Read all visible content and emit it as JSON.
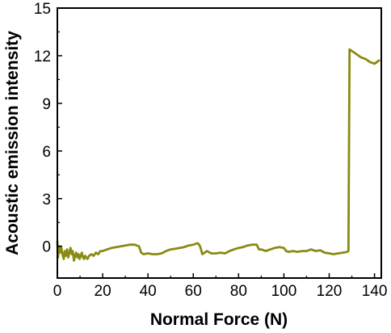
{
  "chart_data": {
    "type": "line",
    "title": "",
    "xlabel": "Normal Force (N)",
    "ylabel": "Acoustic emission intensity",
    "xlim": [
      0,
      143
    ],
    "ylim": [
      -2,
      15
    ],
    "xticks": [
      0,
      20,
      40,
      60,
      80,
      100,
      120,
      140
    ],
    "yticks": [
      0,
      3,
      6,
      9,
      12,
      15
    ],
    "grid": false,
    "legend": "none",
    "series": [
      {
        "color": "#8a8a14",
        "x": [
          0,
          0.3,
          0.6,
          1.0,
          1.4,
          1.8,
          2.3,
          2.8,
          3.3,
          3.8,
          4.3,
          4.8,
          5.3,
          5.8,
          6.3,
          6.8,
          7.3,
          7.8,
          8.3,
          8.8,
          9.3,
          9.8,
          10.3,
          10.8,
          11.3,
          11.8,
          12.3,
          12.8,
          13.3,
          14.0,
          15.0,
          16.0,
          17.0,
          18.0,
          19.0,
          20.0,
          22,
          24,
          26,
          28,
          30,
          32,
          34,
          36,
          37,
          38,
          40,
          42,
          44,
          46,
          48,
          50,
          52,
          54,
          56,
          58,
          60,
          62,
          63,
          64,
          66,
          68,
          70,
          72,
          74,
          76,
          78,
          80,
          82,
          84,
          86,
          88,
          89,
          90,
          92,
          94,
          96,
          98,
          100,
          101,
          102,
          104,
          106,
          108,
          110,
          112,
          114,
          116,
          118,
          120,
          122,
          124,
          126,
          128,
          128.5,
          129,
          130,
          132,
          134,
          136,
          138,
          140,
          141,
          142
        ],
        "y": [
          0.3,
          -0.7,
          -0.2,
          0.0,
          -0.4,
          -0.1,
          -0.5,
          -0.8,
          -0.3,
          -0.6,
          -0.2,
          -0.7,
          -0.4,
          -0.1,
          -0.5,
          -0.3,
          -0.9,
          -0.6,
          -0.4,
          -0.7,
          -0.5,
          -0.8,
          -0.6,
          -0.4,
          -0.7,
          -0.8,
          -0.6,
          -0.7,
          -0.8,
          -0.6,
          -0.5,
          -0.6,
          -0.4,
          -0.5,
          -0.3,
          -0.3,
          -0.2,
          -0.1,
          -0.05,
          0.0,
          0.05,
          0.1,
          0.1,
          0.0,
          -0.4,
          -0.5,
          -0.45,
          -0.5,
          -0.5,
          -0.45,
          -0.3,
          -0.2,
          -0.15,
          -0.1,
          -0.05,
          0.05,
          0.1,
          0.2,
          0.0,
          -0.5,
          -0.3,
          -0.45,
          -0.45,
          -0.4,
          -0.45,
          -0.3,
          -0.2,
          -0.1,
          -0.05,
          0.05,
          0.1,
          0.1,
          -0.2,
          -0.2,
          -0.3,
          -0.2,
          -0.1,
          -0.05,
          -0.1,
          -0.3,
          -0.35,
          -0.3,
          -0.35,
          -0.3,
          -0.3,
          -0.2,
          -0.3,
          -0.25,
          -0.4,
          -0.45,
          -0.5,
          -0.45,
          -0.4,
          -0.35,
          -0.3,
          12.4,
          12.3,
          12.1,
          11.9,
          11.8,
          11.6,
          11.5,
          11.6,
          11.7
        ]
      }
    ]
  }
}
